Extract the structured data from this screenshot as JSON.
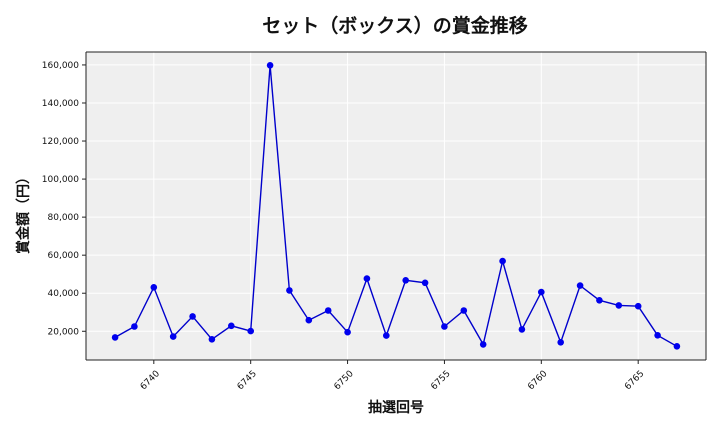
{
  "chart_data": {
    "type": "line",
    "title": "セット（ボックス）の賞金推移",
    "xlabel": "抽選回号",
    "ylabel": "賞金額（円）",
    "x": [
      6738,
      6739,
      6740,
      6741,
      6742,
      6743,
      6744,
      6745,
      6746,
      6747,
      6748,
      6749,
      6750,
      6751,
      6752,
      6753,
      6754,
      6755,
      6756,
      6757,
      6758,
      6759,
      6760,
      6761,
      6762,
      6763,
      6764,
      6765,
      6766,
      6767
    ],
    "y": [
      16800,
      22500,
      43100,
      17200,
      27800,
      15800,
      22900,
      20100,
      159800,
      41500,
      25800,
      30900,
      19500,
      47700,
      17700,
      46800,
      45500,
      22500,
      30900,
      13100,
      56900,
      21000,
      40600,
      14200,
      44000,
      36300,
      33600,
      33200,
      17900,
      12100
    ],
    "xlim": [
      6736.5,
      6768.5
    ],
    "ylim": [
      4900,
      166800
    ],
    "xticks": [
      6740,
      6745,
      6750,
      6755,
      6760,
      6765
    ],
    "xtick_labels": [
      "6740",
      "6745",
      "6750",
      "6755",
      "6760",
      "6765"
    ],
    "yticks": [
      20000,
      40000,
      60000,
      80000,
      100000,
      120000,
      140000,
      160000
    ],
    "ytick_labels": [
      "20,000",
      "40,000",
      "60,000",
      "80,000",
      "100,000",
      "120,000",
      "140,000",
      "160,000"
    ],
    "grid": true,
    "colors": {
      "line": "#0000cc",
      "marker": "#0000ee",
      "plot_bg": "#efefef",
      "grid": "#ffffff"
    }
  }
}
